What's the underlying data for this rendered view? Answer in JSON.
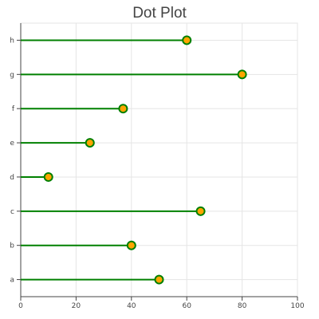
{
  "chart_data": {
    "type": "scatter",
    "style": "lollipop",
    "title": "Dot Plot",
    "xlabel": "",
    "ylabel": "",
    "categories": [
      "a",
      "b",
      "c",
      "d",
      "e",
      "f",
      "g",
      "h"
    ],
    "values": [
      50,
      40,
      65,
      10,
      25,
      37,
      80,
      60
    ],
    "xlim": [
      0,
      100
    ],
    "xticks": [
      0,
      20,
      40,
      60,
      80,
      100
    ],
    "grid": true,
    "legend": "none",
    "colors": {
      "line": "#008000",
      "marker_fill": "#ffa500",
      "marker_stroke": "#008000",
      "grid": "#e5e5e5",
      "axis": "#444444"
    }
  }
}
